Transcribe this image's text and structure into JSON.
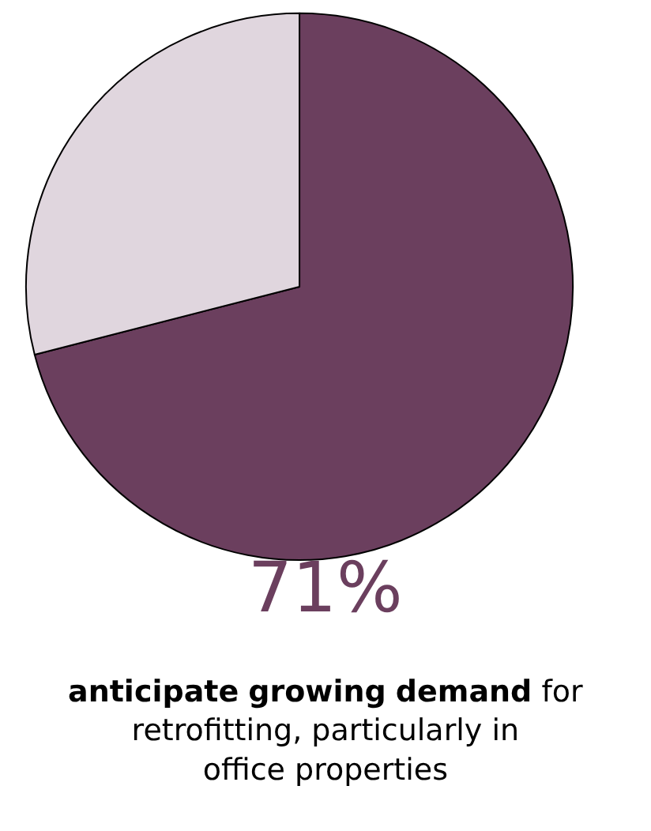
{
  "chart_data": {
    "type": "pie",
    "categories": [
      null,
      null
    ],
    "values": [
      71,
      29
    ],
    "colors": [
      "#6b3f5e",
      "#e0d6de"
    ],
    "annotations": [
      "71%",
      "anticipate growing demand",
      "for retrofitting, particularly in office properties"
    ]
  }
}
